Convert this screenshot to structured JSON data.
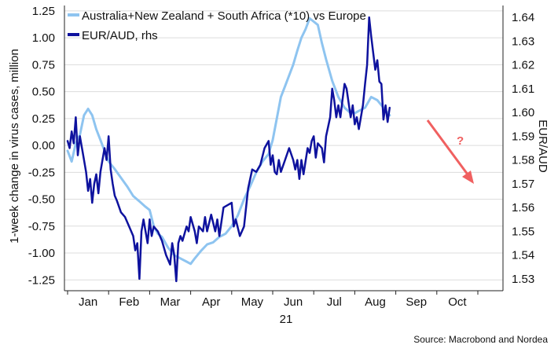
{
  "chart_data": {
    "type": "line",
    "xlabel": "21",
    "ylabel": "1-week change in virus cases, million",
    "y2label": "EUR/AUD",
    "ylim": [
      -1.35,
      1.3
    ],
    "y2lim": [
      1.525,
      1.645
    ],
    "yticks": [
      "1.25",
      "1.00",
      "0.75",
      "0.50",
      "0.25",
      "0.00",
      "-0.25",
      "-0.50",
      "-0.75",
      "-1.00",
      "-1.25"
    ],
    "y2ticks": [
      "1.64",
      "1.63",
      "1.62",
      "1.61",
      "1.60",
      "1.59",
      "1.58",
      "1.57",
      "1.56",
      "1.55",
      "1.54",
      "1.53"
    ],
    "months": [
      "Jan",
      "Feb",
      "Mar",
      "Apr",
      "May",
      "Jun",
      "Jul",
      "Aug",
      "Sep",
      "Oct"
    ],
    "grid": true,
    "legend_position": "top-left",
    "source": "Source: Macrobond and Nordea",
    "annotation": {
      "text": "?",
      "color": "#f06060"
    },
    "series": [
      {
        "name": "Australia+New Zealand + South Africa (*10) vs Europe",
        "axis": "left",
        "color": "#8ec4f0",
        "points": [
          [
            0.0,
            -0.05
          ],
          [
            0.1,
            -0.15
          ],
          [
            0.2,
            0.02
          ],
          [
            0.3,
            0.1
          ],
          [
            0.4,
            0.28
          ],
          [
            0.5,
            0.34
          ],
          [
            0.6,
            0.28
          ],
          [
            0.7,
            0.15
          ],
          [
            0.8,
            0.05
          ],
          [
            0.9,
            -0.05
          ],
          [
            1.0,
            -0.15
          ],
          [
            1.15,
            -0.22
          ],
          [
            1.3,
            -0.3
          ],
          [
            1.45,
            -0.38
          ],
          [
            1.6,
            -0.47
          ],
          [
            1.75,
            -0.52
          ],
          [
            1.9,
            -0.57
          ],
          [
            2.0,
            -0.6
          ],
          [
            2.1,
            -0.75
          ],
          [
            2.2,
            -0.82
          ],
          [
            2.3,
            -0.85
          ],
          [
            2.45,
            -0.95
          ],
          [
            2.6,
            -1.02
          ],
          [
            2.75,
            -1.05
          ],
          [
            2.9,
            -1.08
          ],
          [
            3.0,
            -1.1
          ],
          [
            3.1,
            -1.05
          ],
          [
            3.25,
            -0.98
          ],
          [
            3.4,
            -0.92
          ],
          [
            3.55,
            -0.9
          ],
          [
            3.7,
            -0.85
          ],
          [
            3.85,
            -0.82
          ],
          [
            4.0,
            -0.75
          ],
          [
            4.15,
            -0.65
          ],
          [
            4.3,
            -0.5
          ],
          [
            4.45,
            -0.38
          ],
          [
            4.6,
            -0.25
          ],
          [
            4.75,
            -0.15
          ],
          [
            4.9,
            -0.08
          ],
          [
            5.0,
            0.05
          ],
          [
            5.1,
            0.25
          ],
          [
            5.2,
            0.45
          ],
          [
            5.3,
            0.55
          ],
          [
            5.4,
            0.65
          ],
          [
            5.5,
            0.75
          ],
          [
            5.6,
            0.88
          ],
          [
            5.7,
            1.0
          ],
          [
            5.8,
            1.08
          ],
          [
            5.9,
            1.18
          ],
          [
            6.0,
            1.15
          ],
          [
            6.1,
            1.12
          ],
          [
            6.2,
            0.95
          ],
          [
            6.3,
            0.8
          ],
          [
            6.45,
            0.6
          ],
          [
            6.6,
            0.45
          ],
          [
            6.75,
            0.35
          ],
          [
            6.9,
            0.3
          ],
          [
            7.0,
            0.3
          ],
          [
            7.1,
            0.32
          ],
          [
            7.25,
            0.35
          ],
          [
            7.4,
            0.45
          ],
          [
            7.55,
            0.42
          ],
          [
            7.7,
            0.35
          ],
          [
            7.85,
            0.28
          ]
        ]
      },
      {
        "name": "EUR/AUD, rhs",
        "axis": "right",
        "color": "#0e129e",
        "points": [
          [
            0.0,
            1.588
          ],
          [
            0.05,
            1.585
          ],
          [
            0.1,
            1.592
          ],
          [
            0.15,
            1.587
          ],
          [
            0.2,
            1.598
          ],
          [
            0.25,
            1.582
          ],
          [
            0.3,
            1.59
          ],
          [
            0.35,
            1.585
          ],
          [
            0.4,
            1.58
          ],
          [
            0.45,
            1.575
          ],
          [
            0.5,
            1.567
          ],
          [
            0.55,
            1.572
          ],
          [
            0.6,
            1.562
          ],
          [
            0.65,
            1.57
          ],
          [
            0.7,
            1.574
          ],
          [
            0.75,
            1.566
          ],
          [
            0.8,
            1.575
          ],
          [
            0.85,
            1.58
          ],
          [
            0.9,
            1.585
          ],
          [
            0.95,
            1.58
          ],
          [
            1.0,
            1.59
          ],
          [
            1.05,
            1.576
          ],
          [
            1.1,
            1.57
          ],
          [
            1.15,
            1.565
          ],
          [
            1.2,
            1.563
          ],
          [
            1.3,
            1.558
          ],
          [
            1.4,
            1.556
          ],
          [
            1.5,
            1.552
          ],
          [
            1.6,
            1.548
          ],
          [
            1.65,
            1.542
          ],
          [
            1.7,
            1.545
          ],
          [
            1.75,
            1.53
          ],
          [
            1.8,
            1.55
          ],
          [
            1.85,
            1.555
          ],
          [
            1.9,
            1.55
          ],
          [
            1.95,
            1.545
          ],
          [
            2.0,
            1.555
          ],
          [
            2.05,
            1.548
          ],
          [
            2.1,
            1.552
          ],
          [
            2.2,
            1.55
          ],
          [
            2.3,
            1.546
          ],
          [
            2.4,
            1.54
          ],
          [
            2.5,
            1.536
          ],
          [
            2.55,
            1.545
          ],
          [
            2.6,
            1.54
          ],
          [
            2.65,
            1.529
          ],
          [
            2.7,
            1.545
          ],
          [
            2.75,
            1.548
          ],
          [
            2.8,
            1.546
          ],
          [
            2.9,
            1.552
          ],
          [
            2.95,
            1.55
          ],
          [
            3.0,
            1.556
          ],
          [
            3.1,
            1.55
          ],
          [
            3.15,
            1.545
          ],
          [
            3.2,
            1.552
          ],
          [
            3.3,
            1.55
          ],
          [
            3.35,
            1.556
          ],
          [
            3.4,
            1.55
          ],
          [
            3.5,
            1.557
          ],
          [
            3.6,
            1.55
          ],
          [
            3.65,
            1.555
          ],
          [
            3.7,
            1.548
          ],
          [
            3.8,
            1.56
          ],
          [
            3.9,
            1.561
          ],
          [
            4.0,
            1.562
          ],
          [
            4.05,
            1.552
          ],
          [
            4.1,
            1.555
          ],
          [
            4.2,
            1.548
          ],
          [
            4.3,
            1.552
          ],
          [
            4.4,
            1.568
          ],
          [
            4.45,
            1.572
          ],
          [
            4.5,
            1.576
          ],
          [
            4.6,
            1.575
          ],
          [
            4.7,
            1.578
          ],
          [
            4.8,
            1.585
          ],
          [
            4.9,
            1.588
          ],
          [
            4.95,
            1.578
          ],
          [
            5.0,
            1.582
          ],
          [
            5.05,
            1.575
          ],
          [
            5.1,
            1.574
          ],
          [
            5.15,
            1.58
          ],
          [
            5.2,
            1.575
          ],
          [
            5.3,
            1.58
          ],
          [
            5.4,
            1.585
          ],
          [
            5.5,
            1.58
          ],
          [
            5.55,
            1.576
          ],
          [
            5.6,
            1.58
          ],
          [
            5.65,
            1.572
          ],
          [
            5.7,
            1.58
          ],
          [
            5.75,
            1.574
          ],
          [
            5.85,
            1.585
          ],
          [
            5.9,
            1.583
          ],
          [
            5.95,
            1.588
          ],
          [
            6.0,
            1.59
          ],
          [
            6.05,
            1.581
          ],
          [
            6.1,
            1.587
          ],
          [
            6.2,
            1.585
          ],
          [
            6.25,
            1.579
          ],
          [
            6.3,
            1.59
          ],
          [
            6.35,
            1.594
          ],
          [
            6.4,
            1.598
          ],
          [
            6.45,
            1.61
          ],
          [
            6.5,
            1.605
          ],
          [
            6.55,
            1.598
          ],
          [
            6.6,
            1.603
          ],
          [
            6.65,
            1.598
          ],
          [
            6.7,
            1.605
          ],
          [
            6.75,
            1.612
          ],
          [
            6.8,
            1.61
          ],
          [
            6.85,
            1.604
          ],
          [
            6.9,
            1.598
          ],
          [
            6.95,
            1.603
          ],
          [
            7.0,
            1.595
          ],
          [
            7.05,
            1.598
          ],
          [
            7.1,
            1.593
          ],
          [
            7.15,
            1.598
          ],
          [
            7.2,
            1.603
          ],
          [
            7.25,
            1.612
          ],
          [
            7.3,
            1.62
          ],
          [
            7.35,
            1.64
          ],
          [
            7.4,
            1.632
          ],
          [
            7.45,
            1.625
          ],
          [
            7.5,
            1.618
          ],
          [
            7.55,
            1.622
          ],
          [
            7.6,
            1.613
          ],
          [
            7.65,
            1.612
          ],
          [
            7.7,
            1.597
          ],
          [
            7.75,
            1.603
          ],
          [
            7.8,
            1.596
          ],
          [
            7.85,
            1.602
          ]
        ]
      }
    ]
  }
}
